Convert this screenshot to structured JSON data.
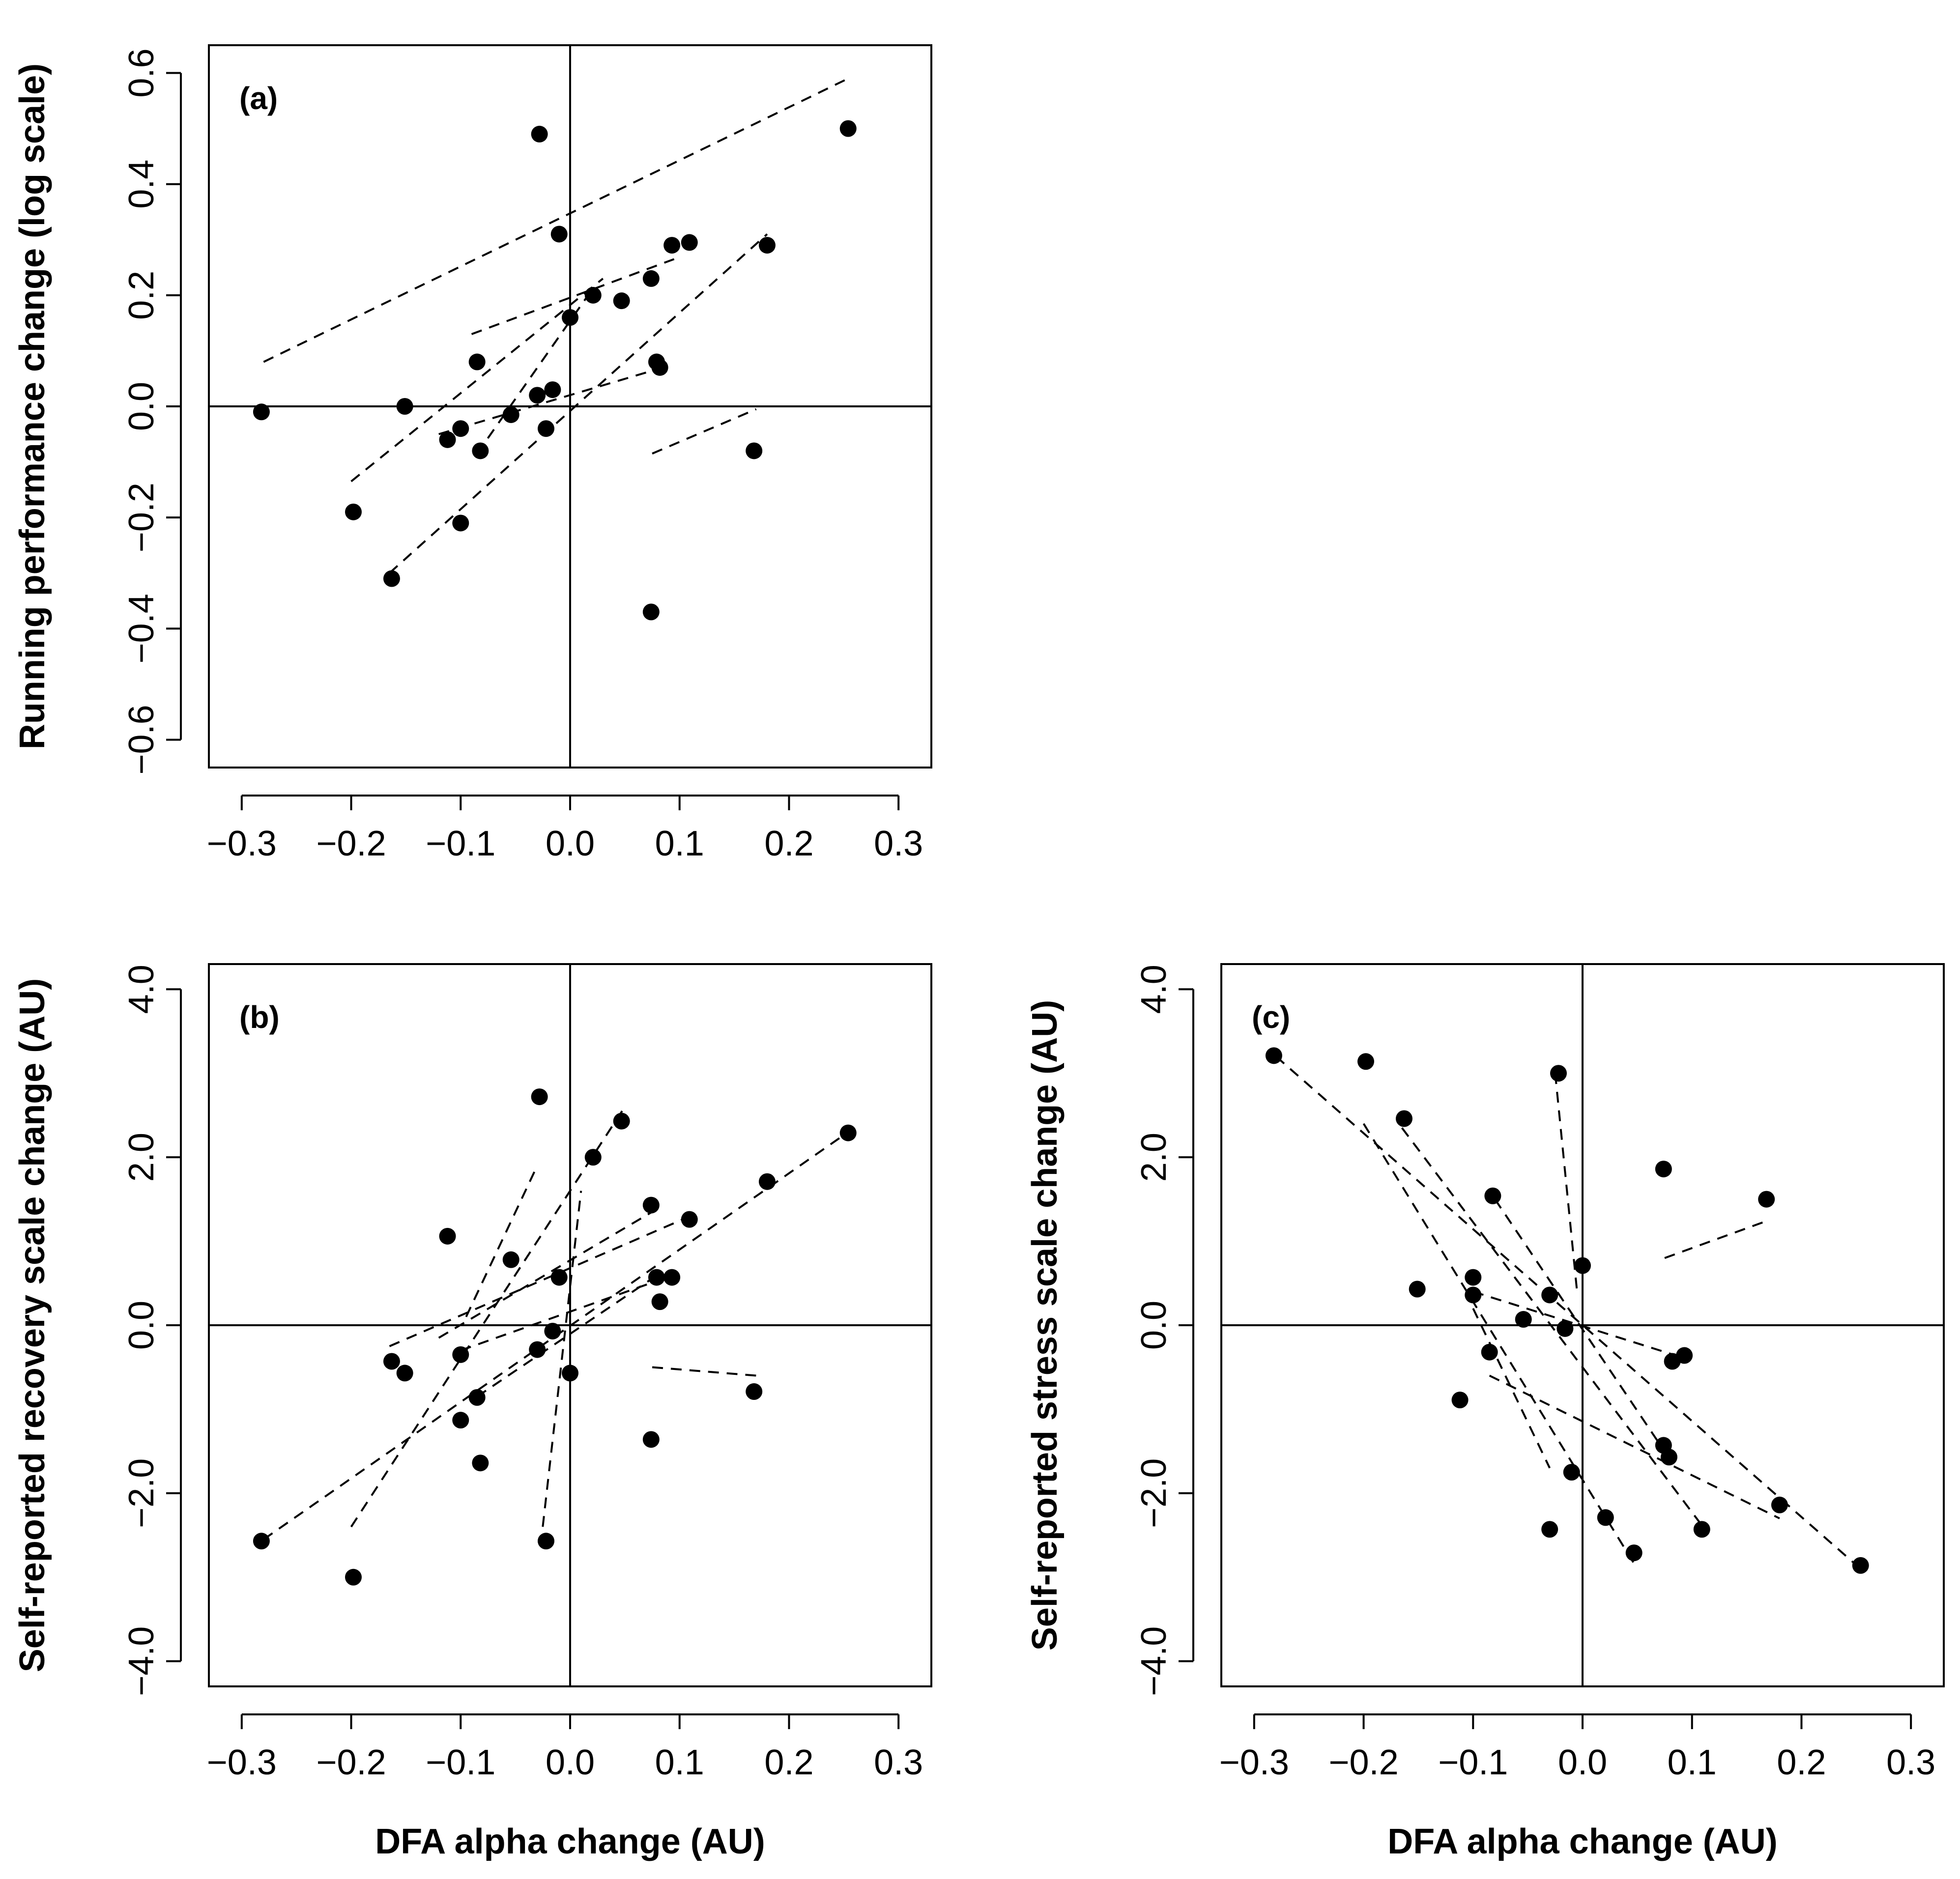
{
  "chart_data": [
    {
      "id": "a",
      "type": "scatter",
      "panel_label": "(a)",
      "xlabel": "",
      "ylabel": "Running performance change (log scale)",
      "xlim": [
        -0.33,
        0.33
      ],
      "ylim": [
        -0.65,
        0.65
      ],
      "xticks": [
        -0.3,
        -0.2,
        -0.1,
        0.0,
        0.1,
        0.2,
        0.3
      ],
      "xtick_labels": [
        "−0.3",
        "−0.2",
        "−0.1",
        "0.0",
        "0.1",
        "0.2",
        "0.3"
      ],
      "yticks": [
        -0.6,
        -0.4,
        -0.2,
        0.0,
        0.2,
        0.4,
        0.6
      ],
      "ytick_labels": [
        "−0.6",
        "−0.4",
        "−0.2",
        "0.0",
        "0.2",
        "0.4",
        "0.6"
      ],
      "reference_lines": {
        "x": 0,
        "y": 0
      },
      "points": [
        [
          -0.282,
          -0.01
        ],
        [
          -0.198,
          -0.19
        ],
        [
          -0.163,
          -0.31
        ],
        [
          -0.151,
          0.0
        ],
        [
          -0.112,
          -0.06
        ],
        [
          -0.1,
          -0.04
        ],
        [
          -0.1,
          -0.21
        ],
        [
          -0.085,
          0.08
        ],
        [
          -0.082,
          -0.08
        ],
        [
          -0.054,
          -0.015
        ],
        [
          -0.03,
          0.02
        ],
        [
          -0.028,
          0.49
        ],
        [
          -0.022,
          -0.04
        ],
        [
          -0.016,
          0.03
        ],
        [
          -0.01,
          0.31
        ],
        [
          0.0,
          0.16
        ],
        [
          0.021,
          0.2
        ],
        [
          0.047,
          0.19
        ],
        [
          0.074,
          0.23
        ],
        [
          0.074,
          -0.37
        ],
        [
          0.079,
          0.08
        ],
        [
          0.082,
          0.07
        ],
        [
          0.093,
          0.29
        ],
        [
          0.109,
          0.295
        ],
        [
          0.168,
          -0.08
        ],
        [
          0.18,
          0.29
        ],
        [
          0.254,
          0.5
        ]
      ],
      "fit_lines": [
        [
          [
            -0.28,
            0.08
          ],
          [
            0.254,
            0.59
          ]
        ],
        [
          [
            -0.2,
            -0.135
          ],
          [
            0.03,
            0.23
          ]
        ],
        [
          [
            -0.165,
            -0.3
          ],
          [
            0.18,
            0.31
          ]
        ],
        [
          [
            -0.09,
            0.13
          ],
          [
            0.095,
            0.265
          ]
        ],
        [
          [
            -0.12,
            -0.05
          ],
          [
            0.085,
            0.07
          ]
        ],
        [
          [
            -0.085,
            -0.085
          ],
          [
            0.02,
            0.21
          ]
        ],
        [
          [
            0.075,
            -0.085
          ],
          [
            0.17,
            -0.005
          ]
        ]
      ]
    },
    {
      "id": "b",
      "type": "scatter",
      "panel_label": "(b)",
      "xlabel": "DFA alpha change (AU)",
      "ylabel": "Self-reported recovery scale change (AU)",
      "xlim": [
        -0.33,
        0.33
      ],
      "ylim": [
        -4.3,
        4.3
      ],
      "xticks": [
        -0.3,
        -0.2,
        -0.1,
        0.0,
        0.1,
        0.2,
        0.3
      ],
      "xtick_labels": [
        "−0.3",
        "−0.2",
        "−0.1",
        "0.0",
        "0.1",
        "0.2",
        "0.3"
      ],
      "yticks": [
        -4.0,
        -2.0,
        0.0,
        2.0,
        4.0
      ],
      "ytick_labels": [
        "−4.0",
        "−2.0",
        "0.0",
        "2.0",
        "4.0"
      ],
      "reference_lines": {
        "x": 0,
        "y": 0
      },
      "points": [
        [
          -0.282,
          -2.57
        ],
        [
          -0.198,
          -3.0
        ],
        [
          -0.163,
          -0.43
        ],
        [
          -0.151,
          -0.57
        ],
        [
          -0.112,
          1.06
        ],
        [
          -0.1,
          -0.35
        ],
        [
          -0.1,
          -1.13
        ],
        [
          -0.085,
          -0.86
        ],
        [
          -0.082,
          -1.64
        ],
        [
          -0.054,
          0.78
        ],
        [
          -0.03,
          -0.29
        ],
        [
          -0.028,
          2.72
        ],
        [
          -0.022,
          -2.57
        ],
        [
          -0.016,
          -0.07
        ],
        [
          -0.01,
          0.57
        ],
        [
          0.0,
          -0.57
        ],
        [
          0.021,
          2.0
        ],
        [
          0.047,
          2.43
        ],
        [
          0.074,
          1.43
        ],
        [
          0.074,
          -1.36
        ],
        [
          0.079,
          0.57
        ],
        [
          0.082,
          0.28
        ],
        [
          0.093,
          0.57
        ],
        [
          0.109,
          1.26
        ],
        [
          0.168,
          -0.79
        ],
        [
          0.18,
          1.71
        ],
        [
          0.254,
          2.29
        ]
      ],
      "fit_lines": [
        [
          [
            -0.28,
            -2.55
          ],
          [
            0.254,
            2.3
          ]
        ],
        [
          [
            -0.2,
            -2.4
          ],
          [
            0.05,
            2.6
          ]
        ],
        [
          [
            -0.165,
            -0.25
          ],
          [
            0.11,
            1.3
          ]
        ],
        [
          [
            -0.1,
            -0.3
          ],
          [
            0.095,
            0.6
          ]
        ],
        [
          [
            -0.085,
            -0.85
          ],
          [
            0.08,
            0.6
          ]
        ],
        [
          [
            -0.095,
            0.1
          ],
          [
            -0.03,
            1.9
          ]
        ],
        [
          [
            -0.025,
            -2.4
          ],
          [
            0.01,
            1.6
          ]
        ],
        [
          [
            -0.12,
            -0.15
          ],
          [
            0.075,
            1.35
          ]
        ],
        [
          [
            0.075,
            -0.5
          ],
          [
            0.17,
            -0.6
          ]
        ]
      ]
    },
    {
      "id": "c",
      "type": "scatter",
      "panel_label": "(c)",
      "xlabel": "DFA alpha change (AU)",
      "ylabel": "Self-reported stress scale change (AU)",
      "xlim": [
        -0.33,
        0.33
      ],
      "ylim": [
        -4.3,
        4.3
      ],
      "xticks": [
        -0.3,
        -0.2,
        -0.1,
        0.0,
        0.1,
        0.2,
        0.3
      ],
      "xtick_labels": [
        "−0.3",
        "−0.2",
        "−0.1",
        "0.0",
        "0.1",
        "0.2",
        "0.3"
      ],
      "yticks": [
        -4.0,
        -2.0,
        0.0,
        2.0,
        4.0
      ],
      "ytick_labels": [
        "−4.0",
        "−2.0",
        "0.0",
        "2.0",
        "4.0"
      ],
      "reference_lines": {
        "x": 0,
        "y": 0
      },
      "points": [
        [
          -0.282,
          3.21
        ],
        [
          -0.198,
          3.14
        ],
        [
          -0.163,
          2.46
        ],
        [
          -0.151,
          0.43
        ],
        [
          -0.112,
          -0.89
        ],
        [
          -0.1,
          0.57
        ],
        [
          -0.1,
          0.36
        ],
        [
          -0.085,
          -0.32
        ],
        [
          -0.082,
          1.54
        ],
        [
          -0.054,
          0.07
        ],
        [
          -0.03,
          0.36
        ],
        [
          -0.03,
          -2.43
        ],
        [
          -0.022,
          3.0
        ],
        [
          -0.016,
          -0.04
        ],
        [
          -0.01,
          -1.75
        ],
        [
          0.0,
          0.71
        ],
        [
          0.021,
          -2.29
        ],
        [
          0.047,
          -2.71
        ],
        [
          0.074,
          1.86
        ],
        [
          0.074,
          -1.43
        ],
        [
          0.079,
          -1.57
        ],
        [
          0.082,
          -0.43
        ],
        [
          0.093,
          -0.36
        ],
        [
          0.109,
          -2.43
        ],
        [
          0.168,
          1.5
        ],
        [
          0.18,
          -2.14
        ],
        [
          0.254,
          -2.86
        ]
      ],
      "fit_lines": [
        [
          [
            -0.28,
            3.2
          ],
          [
            0.254,
            -2.9
          ]
        ],
        [
          [
            -0.2,
            2.4
          ],
          [
            0.05,
            -2.9
          ]
        ],
        [
          [
            -0.165,
            2.35
          ],
          [
            0.11,
            -2.4
          ]
        ],
        [
          [
            -0.1,
            0.4
          ],
          [
            0.095,
            -0.4
          ]
        ],
        [
          [
            -0.1,
            0.2
          ],
          [
            -0.03,
            -1.7
          ]
        ],
        [
          [
            -0.085,
            -0.6
          ],
          [
            0.18,
            -2.3
          ]
        ],
        [
          [
            -0.025,
            3.0
          ],
          [
            -0.005,
            0.4
          ]
        ],
        [
          [
            -0.08,
            1.5
          ],
          [
            0.08,
            -1.6
          ]
        ],
        [
          [
            0.075,
            0.8
          ],
          [
            0.17,
            1.25
          ]
        ]
      ]
    }
  ]
}
